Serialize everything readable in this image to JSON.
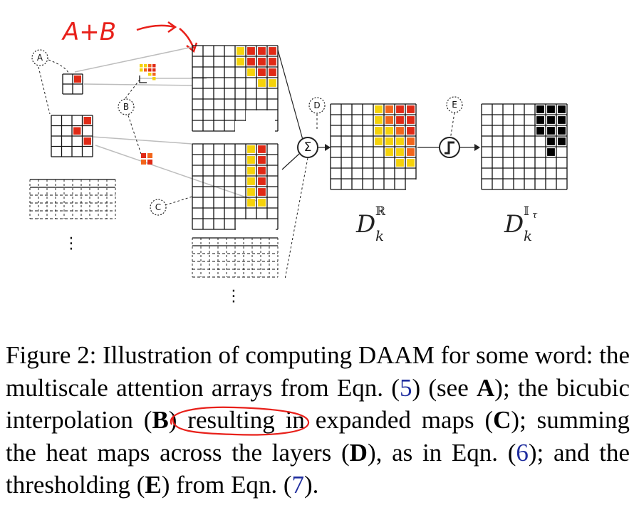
{
  "annotation": {
    "text": "A+B",
    "color": "#e8201a"
  },
  "labels": {
    "a": "A",
    "b": "B",
    "c": "C",
    "d": "D",
    "e": "E"
  },
  "operators": {
    "sum": "Σ",
    "threshold": "ʃ"
  },
  "ellipsis": "⋮",
  "heat_colors": {
    "yellow": "#f5d20a",
    "orange": "#f2651b",
    "red": "#e02a16",
    "black": "#000000"
  },
  "math": {
    "d_real": {
      "base": "D",
      "sup": "ℝ",
      "sub": "k"
    },
    "d_thresh": {
      "base": "D",
      "sup": "𝕀",
      "sup_sub": "τ",
      "sub": "k"
    }
  },
  "caption": {
    "figure_label": "Figure 2:",
    "t1": "Illustration of computing DAAM for some word: the multiscale attention arrays from Eqn. (",
    "ref1": "5",
    "t2": ") (see ",
    "bA": "A",
    "t3": "); the bicubic interpolation (",
    "bB": "B",
    "t4": ") resulting in expanded maps (",
    "bC": "C",
    "t5": "); summing the heat maps across the layers (",
    "bD": "D",
    "t6": "), as in Eqn. (",
    "ref2": "6",
    "t7": "); and the thresholding (",
    "bE": "E",
    "t8": ") from Eqn. (",
    "ref3": "7",
    "t9": ")."
  }
}
